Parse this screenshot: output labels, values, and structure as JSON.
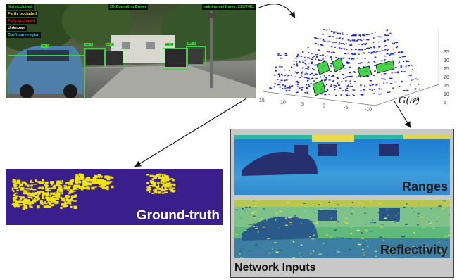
{
  "camera": {
    "top_left_legend": [
      "Not occluded",
      "Partly occluded",
      "Fully occluded",
      "Unknown",
      "Don't care region"
    ],
    "legend_colors": [
      "#3cd23c",
      "#f0e040",
      "#e02020",
      "#ffffff",
      "#3cc8e6"
    ],
    "top_center_text": "2D Bounding Boxes",
    "top_right_text": "training set frame: 223/7481"
  },
  "point_cloud": {
    "x_ticks": [
      "15",
      "10",
      "5",
      "0",
      "-5",
      "-10"
    ],
    "y_ticks": [
      "35",
      "30",
      "25",
      "20",
      "15",
      "10",
      "5"
    ],
    "projection_label": "G(𝒫)"
  },
  "ground_truth": {
    "label": "Ground-truth",
    "background_color": "#3a1e8c",
    "foreground_color": "#f0e400"
  },
  "network_inputs": {
    "title": "Network Inputs",
    "ranges_label": "Ranges",
    "reflectivity_label": "Reflectivity"
  }
}
